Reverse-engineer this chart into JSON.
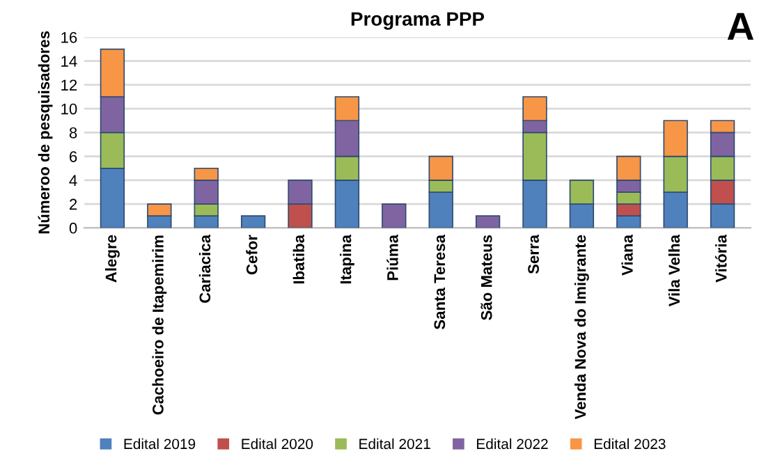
{
  "chart_data": {
    "type": "bar",
    "title": "Programa PPP",
    "ylabel": "Númeroo de pesquisadores",
    "annotations": [
      "A"
    ],
    "categories": [
      "Alegre",
      "Cachoeiro de Itapemirim",
      "Cariacica",
      "Cefor",
      "Ibatiba",
      "Itapina",
      "Piúma",
      "Santa Teresa",
      "São Mateus",
      "Serra",
      "Venda Nova do Imigrante",
      "Viana",
      "Vila Velha",
      "Vitória"
    ],
    "stacked": true,
    "series": [
      {
        "name": "Edital 2019",
        "color": "#4f81bd",
        "values": [
          5,
          1,
          1,
          1,
          0,
          4,
          0,
          3,
          0,
          4,
          2,
          1,
          3,
          2
        ]
      },
      {
        "name": "Edital 2020",
        "color": "#c0504d",
        "values": [
          0,
          0,
          0,
          0,
          2,
          0,
          0,
          0,
          0,
          0,
          0,
          1,
          0,
          2
        ]
      },
      {
        "name": "Edital 2021",
        "color": "#9bbb59",
        "values": [
          3,
          0,
          1,
          0,
          0,
          2,
          0,
          1,
          0,
          4,
          2,
          1,
          3,
          2
        ]
      },
      {
        "name": "Edital 2022",
        "color": "#8064a2",
        "values": [
          3,
          0,
          2,
          0,
          2,
          3,
          2,
          0,
          1,
          1,
          0,
          1,
          0,
          2
        ]
      },
      {
        "name": "Edital 2023",
        "color": "#f79646",
        "values": [
          4,
          1,
          1,
          0,
          0,
          2,
          0,
          2,
          0,
          2,
          0,
          2,
          3,
          1
        ]
      }
    ],
    "ylim": [
      0,
      16
    ],
    "yticks": [
      0,
      2,
      4,
      6,
      8,
      10,
      12,
      14,
      16
    ],
    "grid": "y",
    "legend": "bottom"
  }
}
